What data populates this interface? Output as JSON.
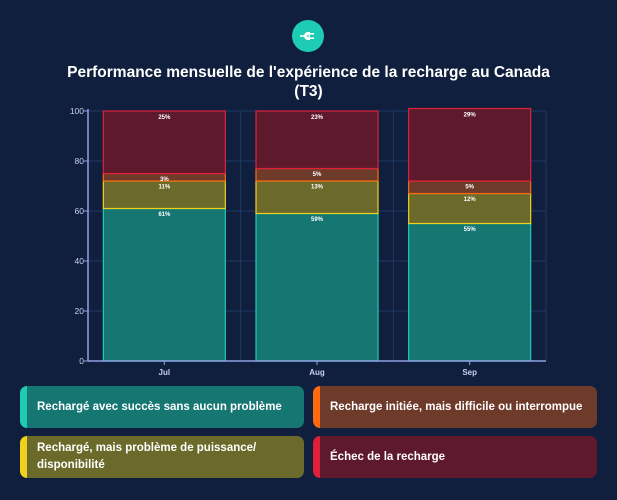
{
  "logo": {
    "icon": "ev-plug-icon",
    "color": "#1ecbb4"
  },
  "title_line1": "Performance mensuelle de l'expérience de la recharge au Canada",
  "title_line2": "(T3)",
  "chart_data": {
    "type": "bar",
    "stacked": true,
    "categories": [
      "Jul",
      "Aug",
      "Sep"
    ],
    "series": [
      {
        "name": "Rechargé avec succès sans aucun problème",
        "values": [
          61,
          59,
          55
        ],
        "labels": [
          "61%",
          "59%",
          "55%"
        ],
        "fill": "#157672",
        "stroke": "#1ecbb4"
      },
      {
        "name": "Rechargé, mais problème de puissance/ disponibilité",
        "values": [
          11,
          13,
          12
        ],
        "labels": [
          "11%",
          "13%",
          "12%"
        ],
        "fill": "#6b6a2a",
        "stroke": "#f0d21e"
      },
      {
        "name": "Recharge initiée, mais difficile ou interrompue",
        "values": [
          3,
          5,
          5
        ],
        "labels": [
          "3%",
          "5%",
          "5%"
        ],
        "fill": "#6e3a2a",
        "stroke": "#ff6a10"
      },
      {
        "name": "Échec de la recharge",
        "values": [
          25,
          23,
          29
        ],
        "labels": [
          "25%",
          "23%",
          "29%"
        ],
        "fill": "#5e1a2c",
        "stroke": "#e0203a"
      }
    ],
    "ylim": [
      0,
      100
    ],
    "yticks": [
      0,
      20,
      40,
      60,
      80,
      100
    ],
    "grid": true,
    "xlabel": "",
    "ylabel": ""
  },
  "legend": [
    {
      "label": "Rechargé avec succès sans aucun problème",
      "bg": "#157672",
      "accent": "#1ecbb4"
    },
    {
      "label": "Recharge initiée, mais difficile ou interrompue",
      "bg": "#6e3a2a",
      "accent": "#ff6a10"
    },
    {
      "label": "Rechargé, mais problème de puissance/ disponibilité",
      "bg": "#6b6a2a",
      "accent": "#f0d21e"
    },
    {
      "label": "Échec de la recharge",
      "bg": "#5e1a2c",
      "accent": "#e0203a"
    }
  ]
}
